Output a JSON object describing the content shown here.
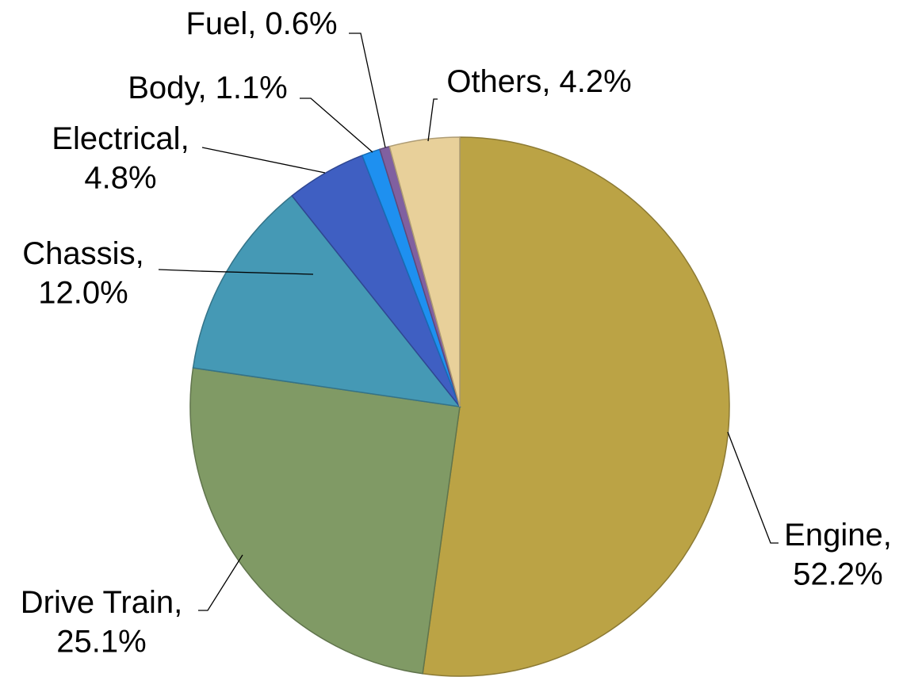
{
  "chart_data": {
    "type": "pie",
    "categories": [
      "Engine",
      "Drive Train",
      "Chassis",
      "Electrical",
      "Body",
      "Fuel",
      "Others"
    ],
    "values": [
      52.2,
      25.1,
      12.0,
      4.8,
      1.1,
      0.6,
      4.2
    ],
    "value_labels": [
      "52.2%",
      "25.1%",
      "12.0%",
      "4.8%",
      "1.1%",
      "0.6%",
      "4.2%"
    ],
    "label_separator": ",",
    "colors": [
      "#bba345",
      "#809a65",
      "#4599b5",
      "#3f5fc2",
      "#1e90f0",
      "#8060a0",
      "#e8d09a"
    ]
  }
}
